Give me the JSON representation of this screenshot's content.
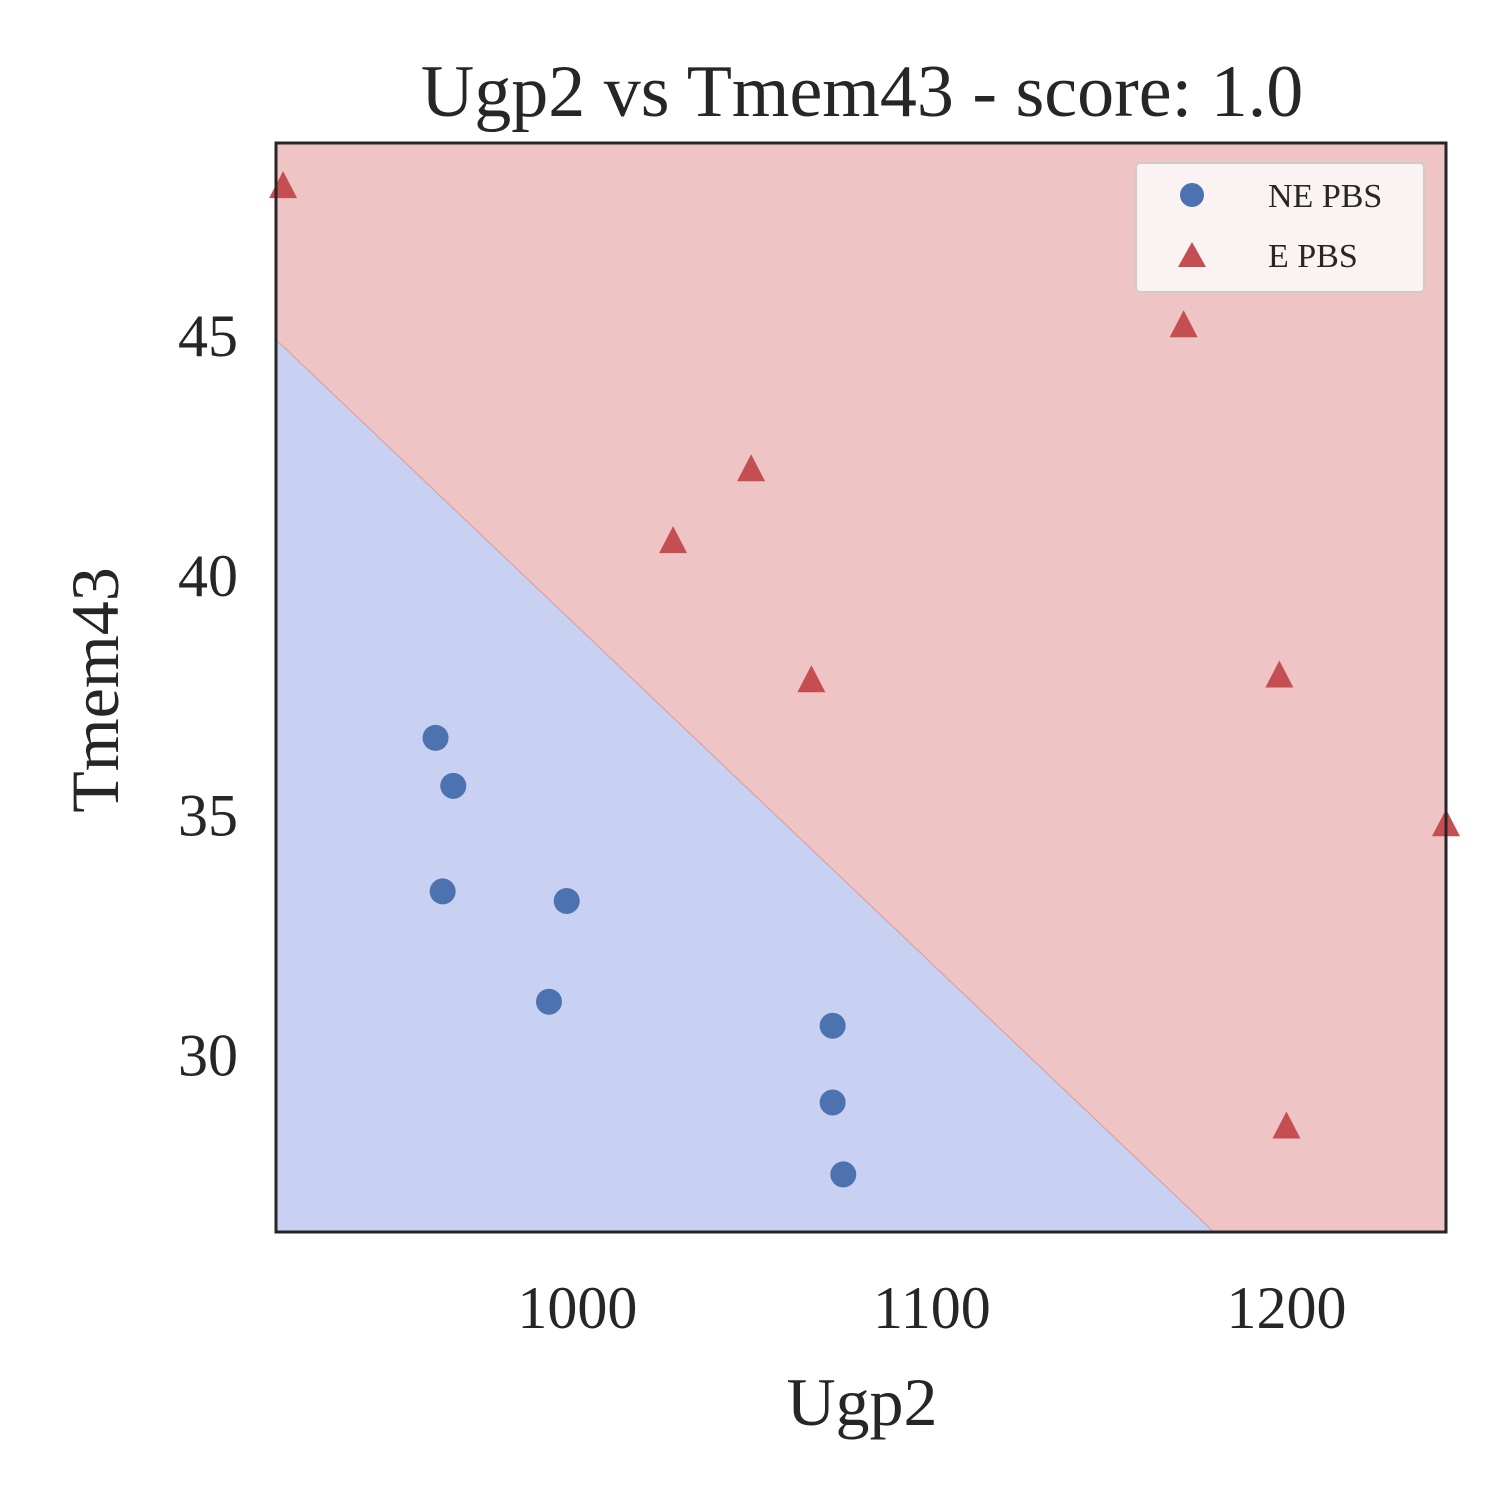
{
  "chart_data": {
    "type": "scatter",
    "title": "Ugp2 vs Tmem43 - score: 1.0",
    "xlabel": "Ugp2",
    "ylabel": "Tmem43",
    "xlim": [
      915,
      1245
    ],
    "ylim": [
      26.3,
      49.0
    ],
    "xticks": [
      1000,
      1100,
      1200
    ],
    "yticks": [
      30,
      35,
      40,
      45
    ],
    "grid": false,
    "legend_position": "top-right",
    "decision_boundary": {
      "points": [
        [
          915,
          44.9
        ],
        [
          1179.5,
          26.3
        ]
      ],
      "below_region_class": "NE PBS",
      "above_region_class": "E PBS"
    },
    "series": [
      {
        "name": "NE PBS",
        "marker": "circle",
        "color": "#4c72b0",
        "region_color": "#c8d1f1",
        "points": [
          [
            960,
            36.6
          ],
          [
            965,
            35.6
          ],
          [
            962,
            33.4
          ],
          [
            997,
            33.2
          ],
          [
            992,
            31.1
          ],
          [
            1072,
            30.6
          ],
          [
            1072,
            29.0
          ],
          [
            1075,
            27.5
          ]
        ]
      },
      {
        "name": "E PBS",
        "marker": "triangle",
        "color": "#c44e52",
        "region_color": "#eec4c4",
        "points": [
          [
            917,
            48.1
          ],
          [
            1171,
            45.2
          ],
          [
            1049,
            42.2
          ],
          [
            1027,
            40.7
          ],
          [
            1066,
            37.8
          ],
          [
            1198,
            37.9
          ],
          [
            1245,
            34.8
          ],
          [
            1200,
            28.5
          ]
        ]
      }
    ]
  }
}
